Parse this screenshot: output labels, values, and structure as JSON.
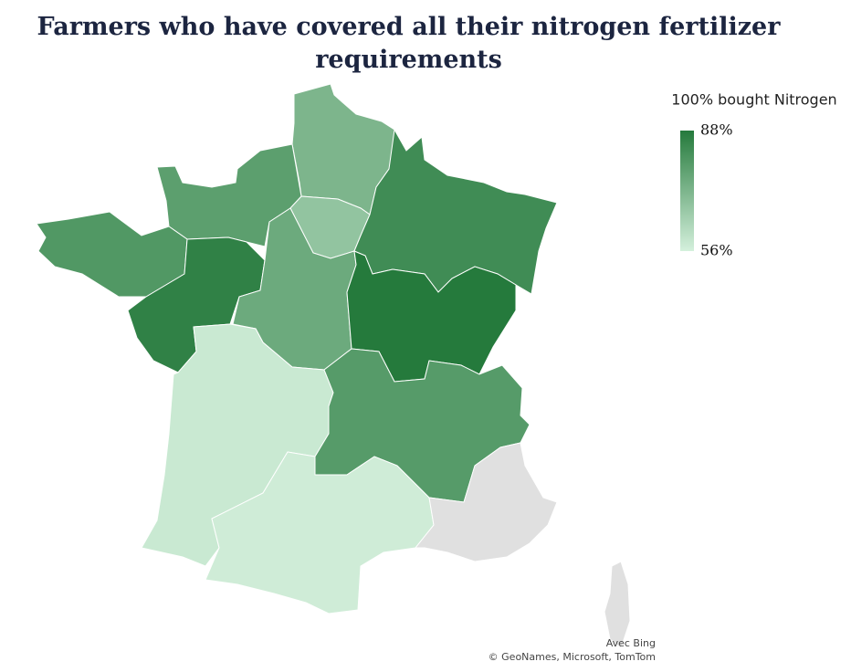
{
  "title": "Farmers who have covered all their nitrogen fertilizer requirements",
  "legend": {
    "title": "100% bought Nitrogen",
    "range": [
      56,
      88
    ],
    "ticks": [
      {
        "value": 88,
        "label": "88%"
      },
      {
        "value": 56,
        "label": "56%"
      }
    ],
    "color_min": "#d4f0dc",
    "color_max": "#257a3c"
  },
  "no_data_color": "#e0e0e0",
  "regions": [
    72,
    78,
    68,
    83,
    80,
    86,
    75,
    88,
    58,
    79,
    57,
    null,
    null
  ],
  "attribution": [
    "Avec Bing",
    "© GeoNames, Microsoft, TomTom"
  ]
}
